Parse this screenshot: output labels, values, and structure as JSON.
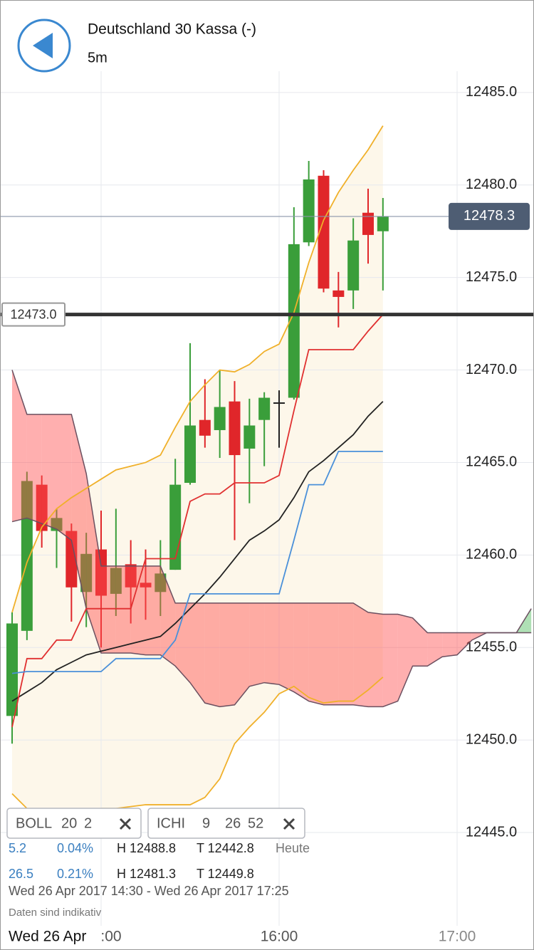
{
  "header": {
    "title": "Deutschland 30 Kassa (-)",
    "interval": "5m"
  },
  "chart_data": {
    "type": "candlestick",
    "ylim": [
      12440.15,
      12486.15
    ],
    "yticks": [
      {
        "value": 12485,
        "label": "12485.0"
      },
      {
        "value": 12480,
        "label": "12480.0"
      },
      {
        "value": 12475,
        "label": "12475.0"
      },
      {
        "value": 12470,
        "label": "12470.0"
      },
      {
        "value": 12465,
        "label": "12465.0"
      },
      {
        "value": 12460,
        "label": "12460.0"
      },
      {
        "value": 12455,
        "label": "12455.0"
      },
      {
        "value": 12450,
        "label": "12450.0"
      },
      {
        "value": 12445,
        "label": "12445.0"
      }
    ],
    "xlim": [
      -0.816,
      35.184
    ],
    "xticks": [
      {
        "value": 6,
        "label": ":00"
      },
      {
        "value": 18,
        "label": "16:00"
      },
      {
        "value": 30,
        "label": "17:00"
      }
    ],
    "grid": true,
    "candles": {
      "open": [
        12451.3,
        12455.9,
        12463.8,
        12461.3,
        12461.3,
        12458.0,
        12460.3,
        12457.9,
        12459.5,
        12458.5,
        12458.0,
        12459.2,
        12463.9,
        12467.3,
        12466.75,
        12468.3,
        12465.75,
        12467.3,
        12468.25,
        12468.5,
        12476.9,
        12480.5,
        12474.3,
        12474.3,
        12478.5,
        12477.5
      ],
      "high": [
        12456.9,
        12464.5,
        12464.3,
        12462.5,
        12461.7,
        12461.2,
        12462.4,
        12462.5,
        12460.8,
        12460.3,
        12460.8,
        12465.2,
        12471.45,
        12469.5,
        12470.0,
        12469.4,
        12468.45,
        12468.8,
        12468.9,
        12478.8,
        12481.3,
        12480.8,
        12475.3,
        12478.2,
        12479.8,
        12479.3
      ],
      "low": [
        12449.8,
        12455.4,
        12460.4,
        12459.3,
        12456.4,
        12456.1,
        12455.0,
        12456.7,
        12456.3,
        12456.5,
        12456.7,
        12459.2,
        12463.8,
        12465.8,
        12465.25,
        12460.8,
        12462.8,
        12464.8,
        12465.8,
        12468.4,
        12476.7,
        12474.2,
        12472.3,
        12473.3,
        12475.75,
        12474.3
      ],
      "close": [
        12456.3,
        12464.0,
        12461.3,
        12462.0,
        12458.25,
        12460.06,
        12457.8,
        12459.3,
        12458.25,
        12458.25,
        12459.0,
        12463.8,
        12467.0,
        12466.45,
        12468.0,
        12465.4,
        12467.0,
        12468.5,
        12468.25,
        12476.8,
        12480.3,
        12474.4,
        12473.95,
        12477.0,
        12477.3,
        12478.3
      ],
      "up_color": "#3a9e3a",
      "down_color": "#e0262a",
      "flat_color": "#222222"
    },
    "bollinger": {
      "color": "#f0b02a",
      "fill": "#fdf7ea",
      "upper": [
        12456.9,
        12459.6,
        12461.5,
        12462.5,
        12463.1,
        12463.6,
        12464.1,
        12464.6,
        12464.8,
        12465.0,
        12465.4,
        12466.9,
        12468.3,
        12469.2,
        12470.0,
        12469.9,
        12470.3,
        12471.0,
        12471.4,
        12473.1,
        12475.8,
        12478.1,
        12479.6,
        12480.8,
        12481.9,
        12483.2
      ],
      "lower": [
        12447.1,
        12446.3,
        12446.1,
        12446.1,
        12446.1,
        12446.2,
        12446.3,
        12446.3,
        12446.4,
        12446.5,
        12446.5,
        12446.5,
        12446.5,
        12446.9,
        12447.9,
        12449.8,
        12450.7,
        12451.5,
        12452.5,
        12452.9,
        12452.3,
        12452.0,
        12452.1,
        12452.1,
        12452.7,
        12453.4
      ]
    },
    "series": [
      {
        "color": "#222222",
        "values": [
          12452.1,
          12452.6,
          12453.1,
          12453.8,
          12454.2,
          12454.6,
          12454.8,
          12455.0,
          12455.2,
          12455.4,
          12455.6,
          12456.3,
          12457.1,
          12457.9,
          12458.8,
          12459.8,
          12460.8,
          12461.3,
          12461.9,
          12463.1,
          12464.5,
          12465.1,
          12465.8,
          12466.5,
          12467.5,
          12468.3
        ]
      },
      {
        "color": "#e03030",
        "values": [
          12450.7,
          12454.4,
          12454.4,
          12455.4,
          12455.4,
          12457.1,
          12457.1,
          12457.1,
          12457.1,
          12459.8,
          12459.8,
          12459.8,
          12462.9,
          12463.3,
          12463.3,
          12463.9,
          12463.9,
          12463.9,
          12464.3,
          12467.8,
          12471.1,
          12471.1,
          12471.1,
          12471.1,
          12472.1,
          12473.0
        ]
      },
      {
        "color": "#4a90d9",
        "values": [
          12453.6,
          12453.7,
          12453.7,
          12453.7,
          12453.7,
          12453.7,
          12453.7,
          12454.4,
          12454.4,
          12454.4,
          12454.4,
          12455.4,
          12457.9,
          12457.9,
          12457.9,
          12457.9,
          12457.9,
          12457.9,
          12457.9,
          12460.8,
          12463.8,
          12463.8,
          12465.6,
          12465.6,
          12465.6,
          12465.6
        ]
      }
    ],
    "cloud": {
      "up_color": "#4dbb5a",
      "down_color": "#ff4d4d",
      "border_color": "#6b5060",
      "span_a": [
        12461.8,
        12462.0,
        12461.7,
        12461.4,
        12460.8,
        12457.1,
        12454.7,
        12454.7,
        12454.7,
        12454.6,
        12454.6,
        12454.0,
        12453.1,
        12452.0,
        12451.8,
        12451.9,
        12452.9,
        12453.1,
        12453.0,
        12452.6,
        12452.1,
        12451.9,
        12451.9,
        12451.9,
        12451.8,
        12451.8,
        12452.1,
        12454.0,
        12454.0,
        12454.5,
        12454.6,
        12455.4,
        12455.8,
        12455.8,
        12455.8,
        12457.1
      ],
      "span_b": [
        12470.0,
        12467.6,
        12467.6,
        12467.6,
        12467.6,
        12464.4,
        12459.4,
        12459.4,
        12459.4,
        12459.4,
        12459.4,
        12457.4,
        12457.4,
        12457.4,
        12457.4,
        12457.4,
        12457.4,
        12457.4,
        12457.4,
        12457.4,
        12457.4,
        12457.4,
        12457.4,
        12457.4,
        12456.9,
        12456.8,
        12456.8,
        12456.6,
        12455.8,
        12455.8,
        12455.8,
        12455.8,
        12455.8,
        12455.8,
        12455.8,
        12455.8
      ]
    },
    "last_price": 12478.3,
    "alert_line": {
      "value": 12473,
      "label": "12473.0"
    }
  },
  "indicators": [
    {
      "name": "BOLL",
      "params": [
        20,
        2
      ]
    },
    {
      "name": "ICHI",
      "params": [
        9,
        26,
        52
      ]
    }
  ],
  "stats": [
    [
      "5.2",
      "0.04%",
      "H 12488.8",
      "T 12442.8",
      "Heute"
    ],
    [
      "26.5",
      "0.21%",
      "H 12481.3",
      "T 12449.8"
    ]
  ],
  "range": "Wed 26 Apr 2017 14:30 - Wed 26 Apr 2017 17:25",
  "disclaimer": "Daten sind indikativ",
  "date_label": "Wed 26 Apr"
}
